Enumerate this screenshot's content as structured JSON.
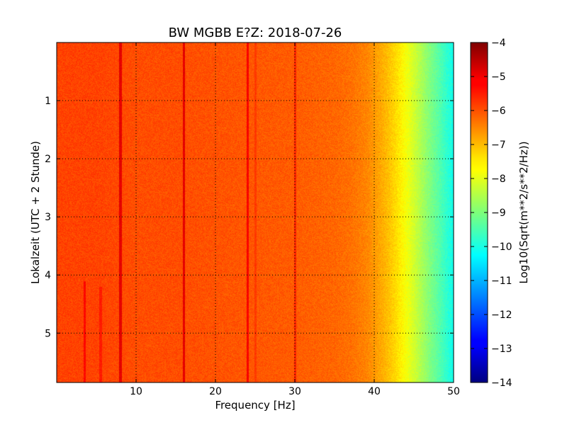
{
  "chart_data": {
    "type": "heatmap",
    "title": "BW MGBB E?Z: 2018-07-26",
    "xlabel": "Frequency [Hz]",
    "ylabel": "Lokalzeit (UTC + 2 Stunde)",
    "xlim": [
      0,
      50
    ],
    "ylim": [
      5.85,
      0
    ],
    "x_ticks": [
      10,
      20,
      30,
      40,
      50
    ],
    "x_tick_labels": [
      "10",
      "20",
      "30",
      "40",
      "50"
    ],
    "y_ticks": [
      1,
      2,
      3,
      4,
      5
    ],
    "y_tick_labels": [
      "1",
      "2",
      "3",
      "4",
      "5"
    ],
    "grid": true,
    "colormap": "jet",
    "colorbar": {
      "label": "Log10(Sqrt(m**2/s**2/Hz))",
      "range": [
        -14,
        -4
      ],
      "ticks": [
        -4,
        -5,
        -6,
        -7,
        -8,
        -9,
        -10,
        -11,
        -12,
        -13,
        -14
      ],
      "tick_labels": [
        "−4",
        "−5",
        "−6",
        "−7",
        "−8",
        "−9",
        "−10",
        "−11",
        "−12",
        "−13",
        "−14"
      ]
    },
    "spectrum_profile": {
      "frequency_hz": [
        0,
        5,
        10,
        15,
        20,
        25,
        30,
        35,
        37,
        39,
        40,
        41,
        42,
        43,
        44,
        45,
        46,
        47,
        48,
        49,
        50
      ],
      "log_amplitude": [
        -5.9,
        -5.9,
        -6.0,
        -6.0,
        -6.05,
        -6.1,
        -6.15,
        -6.25,
        -6.35,
        -6.55,
        -6.75,
        -6.95,
        -7.2,
        -7.5,
        -7.85,
        -8.2,
        -8.6,
        -9.0,
        -9.35,
        -9.75,
        -10.1
      ]
    },
    "spectral_lines": [
      {
        "frequency_hz": 8,
        "log_amplitude": -5.0
      },
      {
        "frequency_hz": 16,
        "log_amplitude": -5.0
      },
      {
        "frequency_hz": 24,
        "log_amplitude": -5.2
      },
      {
        "frequency_hz": 3.5,
        "log_amplitude": -5.3,
        "time_range": [
          4.1,
          5.85
        ]
      },
      {
        "frequency_hz": 5.5,
        "log_amplitude": -5.5,
        "time_range": [
          4.2,
          5.85
        ]
      },
      {
        "frequency_hz": 25,
        "log_amplitude": -5.8
      },
      {
        "frequency_hz": 30,
        "log_amplitude": -5.6
      }
    ]
  }
}
